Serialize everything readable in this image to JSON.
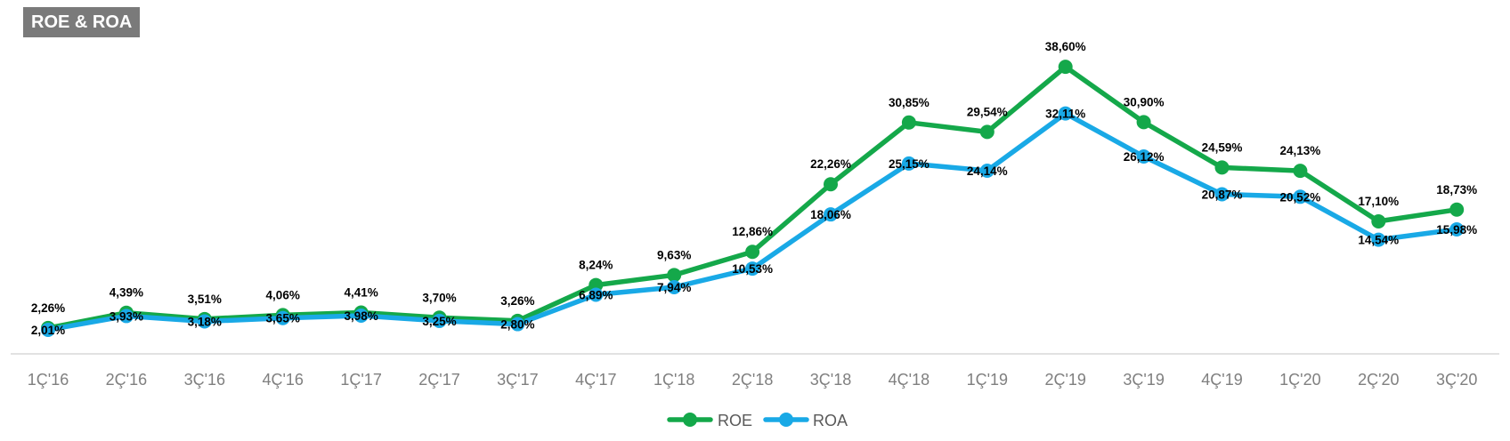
{
  "title": "ROE & ROA",
  "chart_data": {
    "type": "line",
    "categories": [
      "1Ç'16",
      "2Ç'16",
      "3Ç'16",
      "4Ç'16",
      "1Ç'17",
      "2Ç'17",
      "3Ç'17",
      "4Ç'17",
      "1Ç'18",
      "2Ç'18",
      "3Ç'18",
      "4Ç'18",
      "1Ç'19",
      "2Ç'19",
      "3Ç'19",
      "4Ç'19",
      "1Ç'20",
      "2Ç'20",
      "3Ç'20"
    ],
    "series": [
      {
        "name": "ROE",
        "color": "#14a84a",
        "values": [
          2.26,
          4.39,
          3.51,
          4.06,
          4.41,
          3.7,
          3.26,
          8.24,
          9.63,
          12.86,
          22.26,
          30.85,
          29.54,
          38.6,
          30.9,
          24.59,
          24.13,
          17.1,
          18.73
        ],
        "labels": [
          "2,26%",
          "4,39%",
          "3,51%",
          "4,06%",
          "4,41%",
          "3,70%",
          "3,26%",
          "8,24%",
          "9,63%",
          "12,86%",
          "22,26%",
          "30,85%",
          "29,54%",
          "38,60%",
          "30,90%",
          "24,59%",
          "24,13%",
          "17,10%",
          "18,73%"
        ]
      },
      {
        "name": "ROA",
        "color": "#19a9e6",
        "values": [
          2.01,
          3.93,
          3.18,
          3.65,
          3.98,
          3.25,
          2.8,
          6.89,
          7.94,
          10.53,
          18.06,
          25.15,
          24.14,
          32.11,
          26.12,
          20.87,
          20.52,
          14.54,
          15.98
        ],
        "labels": [
          "2,01%",
          "3,93%",
          "3,18%",
          "3,65%",
          "3,98%",
          "3,25%",
          "2,80%",
          "6,89%",
          "7,94%",
          "10,53%",
          "18,06%",
          "25,15%",
          "24,14%",
          "32,11%",
          "26,12%",
          "20,87%",
          "20,52%",
          "14,54%",
          "15,98%"
        ]
      }
    ],
    "grid": false,
    "legend": "bottom-center"
  }
}
